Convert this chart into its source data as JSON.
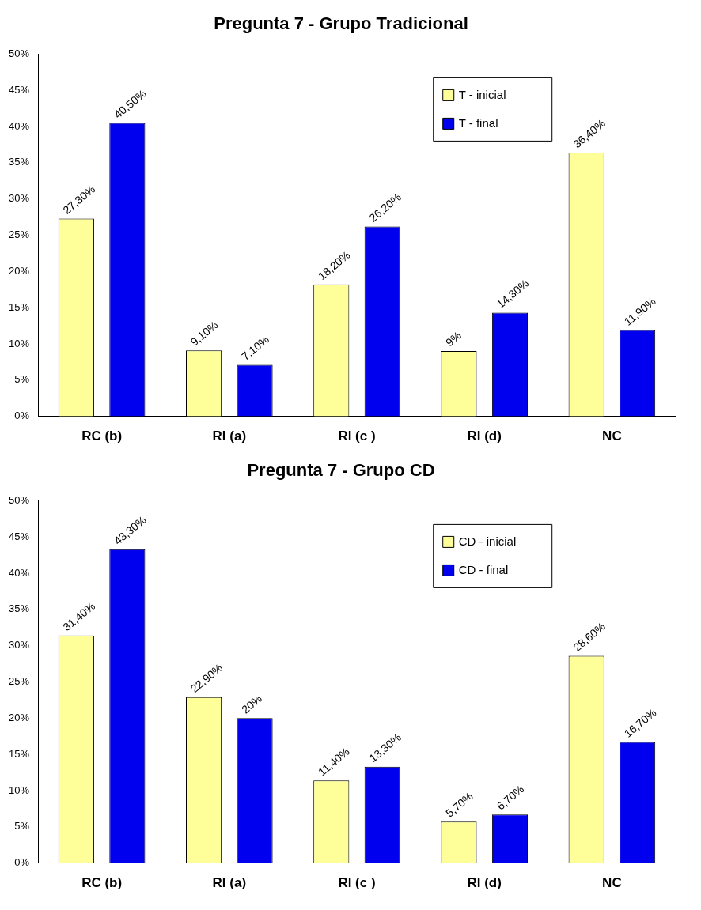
{
  "chart_data": [
    {
      "type": "bar",
      "title": "Pregunta 7 - Grupo Tradicional",
      "categories": [
        "RC (b)",
        "RI (a)",
        "RI (c )",
        "RI (d)",
        "NC"
      ],
      "series": [
        {
          "name": "T - inicial",
          "color": "#ffff99",
          "values": [
            27.3,
            9.1,
            18.2,
            9,
            36.4
          ],
          "value_labels": [
            "27,30%",
            "9,10%",
            "18,20%",
            "9%",
            "36,40%"
          ]
        },
        {
          "name": "T - final",
          "color": "#0000ee",
          "values": [
            40.5,
            7.1,
            26.2,
            14.3,
            11.9
          ],
          "value_labels": [
            "40,50%",
            "7,10%",
            "26,20%",
            "14,30%",
            "11,90%"
          ]
        }
      ],
      "ylim": [
        0,
        50
      ],
      "yticks": [
        {
          "value": 0,
          "label": "0%"
        },
        {
          "value": 5,
          "label": "5%"
        },
        {
          "value": 10,
          "label": "10%"
        },
        {
          "value": 15,
          "label": "15%"
        },
        {
          "value": 20,
          "label": "20%"
        },
        {
          "value": 25,
          "label": "25%"
        },
        {
          "value": 30,
          "label": "30%"
        },
        {
          "value": 35,
          "label": "35%"
        },
        {
          "value": 40,
          "label": "40%"
        },
        {
          "value": 45,
          "label": "45%"
        },
        {
          "value": 50,
          "label": "50%"
        }
      ],
      "legend": "top right",
      "grid": false
    },
    {
      "type": "bar",
      "title": "Pregunta 7 - Grupo CD",
      "categories": [
        "RC (b)",
        "RI (a)",
        "RI (c )",
        "RI (d)",
        "NC"
      ],
      "series": [
        {
          "name": "CD - inicial",
          "color": "#ffff99",
          "values": [
            31.4,
            22.9,
            11.4,
            5.7,
            28.6
          ],
          "value_labels": [
            "31,40%",
            "22,90%",
            "11,40%",
            "5,70%",
            "28,60%"
          ]
        },
        {
          "name": "CD - final",
          "color": "#0000ee",
          "values": [
            43.3,
            20,
            13.3,
            6.7,
            16.7
          ],
          "value_labels": [
            "43,30%",
            "20%",
            "13,30%",
            "6,70%",
            "16,70%"
          ]
        }
      ],
      "ylim": [
        0,
        50
      ],
      "yticks": [
        {
          "value": 0,
          "label": "0%"
        },
        {
          "value": 5,
          "label": "5%"
        },
        {
          "value": 10,
          "label": "10%"
        },
        {
          "value": 15,
          "label": "15%"
        },
        {
          "value": 20,
          "label": "20%"
        },
        {
          "value": 25,
          "label": "25%"
        },
        {
          "value": 30,
          "label": "30%"
        },
        {
          "value": 35,
          "label": "35%"
        },
        {
          "value": 40,
          "label": "40%"
        },
        {
          "value": 45,
          "label": "45%"
        },
        {
          "value": 50,
          "label": "50%"
        }
      ],
      "legend": "top right",
      "grid": false
    }
  ]
}
